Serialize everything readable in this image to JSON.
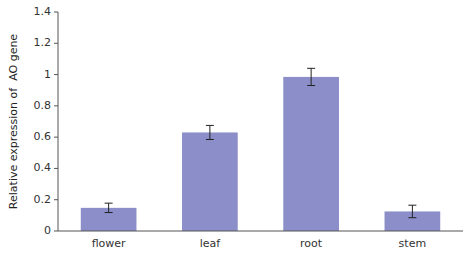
{
  "chart_data": {
    "type": "bar",
    "categories": [
      "flower",
      "leaf",
      "root",
      "stem"
    ],
    "values": [
      0.148,
      0.63,
      0.985,
      0.125
    ],
    "errors": [
      0.03,
      0.045,
      0.055,
      0.04
    ],
    "color": "#8B8EC8",
    "ylabel": "Relative expression of  AO gene",
    "ylim": [
      0,
      1.4
    ],
    "yticks": [
      0,
      0.2,
      0.4,
      0.6,
      0.8,
      1,
      1.2,
      1.4
    ],
    "grid": false
  }
}
